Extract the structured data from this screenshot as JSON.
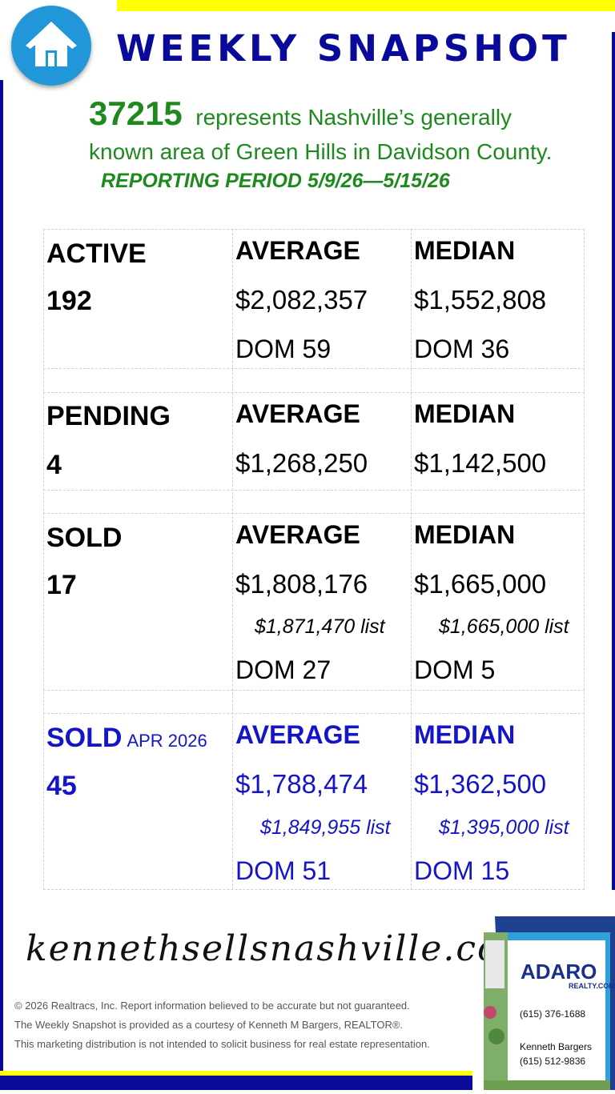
{
  "header": {
    "title": "WEEKLY SNAPSHOT",
    "icon": "home-icon"
  },
  "intro": {
    "zip": "37215",
    "line1_text": "represents Nashville’s generally",
    "line2_text": "known area of Green Hills in Davidson County.",
    "period": "REPORTING PERIOD 5/9/26—5/15/26"
  },
  "active": {
    "label": "ACTIVE",
    "count": "192",
    "avg_head": "AVERAGE",
    "avg_price": "$2,082,357",
    "avg_dom": "DOM 59",
    "med_head": "MEDIAN",
    "med_price": "$1,552,808",
    "med_dom": "DOM 36"
  },
  "pending": {
    "label": "PENDING",
    "count": "4",
    "avg_head": "AVERAGE",
    "avg_price": "$1,268,250",
    "med_head": "MEDIAN",
    "med_price": "$1,142,500"
  },
  "sold": {
    "label": "SOLD",
    "count": "17",
    "avg_head": "AVERAGE",
    "avg_price": "$1,808,176",
    "avg_list": "$1,871,470 list",
    "avg_dom": "DOM 27",
    "med_head": "MEDIAN",
    "med_price": "$1,665,000",
    "med_list": "$1,665,000 list",
    "med_dom": "DOM 5"
  },
  "sold_month": {
    "label": "SOLD",
    "month": "APR 2026",
    "count": "45",
    "avg_head": "AVERAGE",
    "avg_price": "$1,788,474",
    "avg_list": "$1,849,955 list",
    "avg_dom": "DOM 51",
    "med_head": "MEDIAN",
    "med_price": "$1,362,500",
    "med_list": "$1,395,000 list",
    "med_dom": "DOM 15"
  },
  "footer": {
    "website": "kennethsellsnashville.com",
    "disclaimer1": "© 2026 Realtracs, Inc. Report information believed to be accurate but not guaranteed.",
    "disclaimer2": "The Weekly Snapshot is provided as a courtesy of Kenneth M Bargers, REALTOR®.",
    "disclaimer3": "This marketing distribution is not intended to solicit business for real estate representation."
  },
  "sign": {
    "brand": "ADARO",
    "brand_sub": "REALTY.COM",
    "office_phone": "(615) 376-1688",
    "agent_name": "Kenneth Bargers",
    "agent_phone": "(615) 512-9836"
  },
  "colors": {
    "navy": "#0a0a9a",
    "green": "#1e8a1e",
    "blue": "#1414c8",
    "yellow": "#ffff00"
  }
}
